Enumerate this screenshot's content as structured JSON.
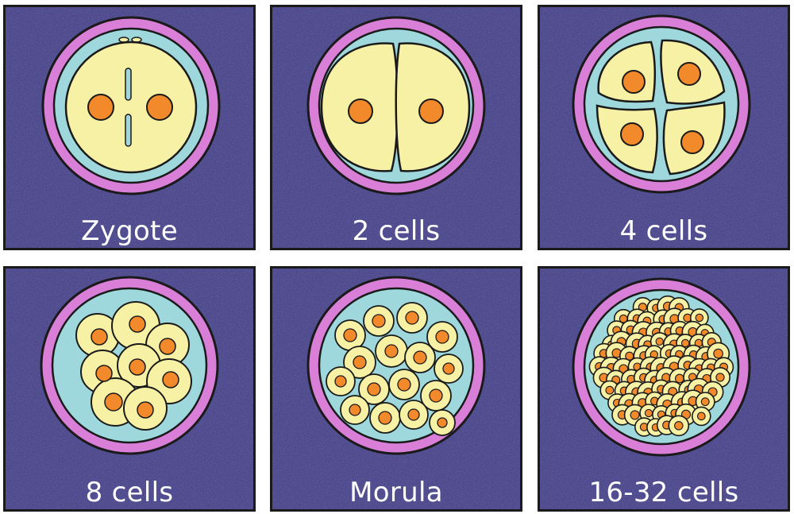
{
  "colors": {
    "background": "#4e4a8e",
    "zona": "#d97fd8",
    "fluid": "#9fd8dc",
    "cell": "#f7f1a6",
    "nucleus": "#f28a2c",
    "outline": "#1a1a1a",
    "label": "#ffffff"
  },
  "stages": [
    {
      "id": "zygote",
      "label": "Zygote",
      "cells": 1
    },
    {
      "id": "two-cells",
      "label": "2 cells",
      "cells": 2
    },
    {
      "id": "four-cells",
      "label": "4 cells",
      "cells": 4
    },
    {
      "id": "eight-cells",
      "label": "8 cells",
      "cells": 8
    },
    {
      "id": "morula",
      "label": "Morula",
      "cells": 16
    },
    {
      "id": "blastomeres-16-32",
      "label": "16-32 cells",
      "cells": 32
    }
  ]
}
